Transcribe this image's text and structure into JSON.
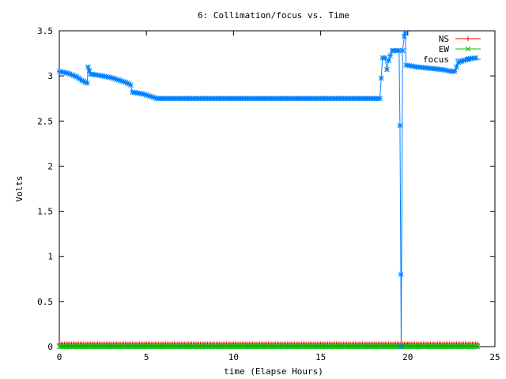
{
  "chart_data": {
    "type": "line",
    "title": "6: Collimation/focus vs. Time",
    "xlabel": "time (Elapse Hours)",
    "ylabel": "Volts",
    "xlim": [
      0,
      25
    ],
    "ylim": [
      0,
      3.5
    ],
    "x_ticks": [
      "0",
      "5",
      "10",
      "15",
      "20",
      "25"
    ],
    "y_ticks": [
      "0",
      "0.5",
      "1",
      "1.5",
      "2",
      "2.5",
      "3",
      "3.5"
    ],
    "grid": false,
    "legend_position": "top-right",
    "series": [
      {
        "name": "NS",
        "color": "#ff0000",
        "marker": "plus",
        "points": [
          [
            0,
            0.03
          ],
          [
            24,
            0.03
          ]
        ]
      },
      {
        "name": "EW",
        "color": "#00c000",
        "marker": "cross",
        "points": [
          [
            0,
            0.0
          ],
          [
            24,
            0.0
          ]
        ]
      },
      {
        "name": "focus",
        "color": "#0080ff",
        "marker": "star",
        "points": [
          [
            0.0,
            3.05
          ],
          [
            0.5,
            3.03
          ],
          [
            1.0,
            2.99
          ],
          [
            1.3,
            2.95
          ],
          [
            1.6,
            2.92
          ],
          [
            1.65,
            3.1
          ],
          [
            1.8,
            3.02
          ],
          [
            2.2,
            3.01
          ],
          [
            3.0,
            2.98
          ],
          [
            3.8,
            2.93
          ],
          [
            4.1,
            2.9
          ],
          [
            4.2,
            2.82
          ],
          [
            4.8,
            2.8
          ],
          [
            5.3,
            2.77
          ],
          [
            5.6,
            2.75
          ],
          [
            8.0,
            2.75
          ],
          [
            12.0,
            2.75
          ],
          [
            16.0,
            2.75
          ],
          [
            18.4,
            2.75
          ],
          [
            18.55,
            3.2
          ],
          [
            18.7,
            3.2
          ],
          [
            18.8,
            3.07
          ],
          [
            18.9,
            3.17
          ],
          [
            19.1,
            3.28
          ],
          [
            19.5,
            3.28
          ],
          [
            19.55,
            2.45
          ],
          [
            19.6,
            0.8
          ],
          [
            19.62,
            0.0
          ],
          [
            19.7,
            3.28
          ],
          [
            19.8,
            3.44
          ],
          [
            19.85,
            3.48
          ],
          [
            19.9,
            3.12
          ],
          [
            20.5,
            3.1
          ],
          [
            21.0,
            3.09
          ],
          [
            21.5,
            3.08
          ],
          [
            22.0,
            3.07
          ],
          [
            22.5,
            3.05
          ],
          [
            22.7,
            3.05
          ],
          [
            22.9,
            3.15
          ],
          [
            23.2,
            3.17
          ],
          [
            23.5,
            3.19
          ],
          [
            23.9,
            3.2
          ]
        ]
      }
    ]
  }
}
